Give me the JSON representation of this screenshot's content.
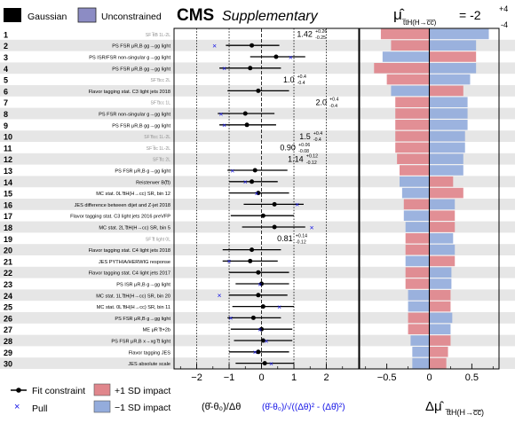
{
  "header": {
    "experiment": "CMS",
    "label": "Supplementary",
    "legend_gaussian": "Gaussian",
    "legend_unconstrained": "Unconstrained",
    "poi_symbol": "μ̂",
    "poi_subscript": "t̅tH(H→c̅c̅)",
    "poi_value": "= -2",
    "poi_sup": "+4",
    "poi_sub": "-4"
  },
  "footer": {
    "legend_fit": "Fit constraint",
    "legend_pull": "Pull",
    "legend_plus": "+1 SD impact",
    "legend_minus": "−1 SD impact",
    "pull_axis_label_1": "(θ̂-θ₀)/Δθ",
    "pull_axis_label_2": "(θ̂-θ₀)/√((Δθ)² - (Δθ̂)²)",
    "impact_axis_label": "Δμ̂",
    "impact_axis_sub": "t̅tH(H→c̅c̅)"
  },
  "colors": {
    "gaussian_fill": "#000000",
    "unconstrained_fill": "#8c8cc4",
    "plus_impact": "#e0868c",
    "minus_impact": "#94acdc",
    "pull_marker": "#1414e6",
    "row_band": "#e6e6e6"
  },
  "chart_data": {
    "type": "impact-plot",
    "pull_axis": {
      "range": [
        -2.7,
        3.0
      ],
      "ticks": [
        -2,
        -1,
        0,
        1,
        2
      ],
      "tick_labels": [
        "−2",
        "−1",
        "0",
        "1",
        "2"
      ]
    },
    "impact_axis": {
      "range": [
        -0.82,
        0.82
      ],
      "ticks": [
        -0.5,
        0,
        0.5
      ],
      "tick_labels": [
        "−0.5",
        "0",
        "0.5"
      ]
    },
    "rows": [
      {
        "rank": "1",
        "name": "SF t̅tB 1L-2L",
        "type": "unconstrained",
        "value": 1.42,
        "label": "1.42",
        "err_up": "+0.26",
        "err_dn": "-0.25",
        "minus": 0.7,
        "plus": -0.57
      },
      {
        "rank": "2",
        "name": "PS FSR μR,B gg→gg light",
        "type": "gaussian",
        "value": -0.3,
        "lo": -1.1,
        "hi": 0.55,
        "pull": -1.45,
        "minus": 0.55,
        "plus": -0.45
      },
      {
        "rank": "3",
        "name": "PS ISR/FSR non-singular g→gg light",
        "type": "gaussian",
        "value": 0.45,
        "lo": -0.35,
        "hi": 1.35,
        "pull": 0.9,
        "minus": -0.55,
        "plus": 0.55
      },
      {
        "rank": "4",
        "name": "PS FSR μR,B gg→gg light",
        "type": "gaussian",
        "value": -0.35,
        "lo": -1.3,
        "hi": 0.6,
        "pull": -1.15,
        "minus": 0.55,
        "plus": -0.65
      },
      {
        "rank": "5",
        "name": "SF t̅tcc 2L",
        "type": "unconstrained",
        "value": 1.0,
        "label": "1.0",
        "err_up": "+0.4",
        "err_dn": "-0.4",
        "minus": 0.48,
        "plus": -0.5
      },
      {
        "rank": "6",
        "name": "Flavor tagging stat. C3 light jets 2018",
        "type": "gaussian",
        "value": -0.1,
        "lo": -1.05,
        "hi": 0.85,
        "minus": -0.45,
        "plus": 0.4
      },
      {
        "rank": "7",
        "name": "SF t̅tcc 1L",
        "type": "unconstrained",
        "value": 2.0,
        "label": "2.0",
        "err_up": "+0.4",
        "err_dn": "-0.4",
        "minus": 0.45,
        "plus": -0.4
      },
      {
        "rank": "8",
        "name": "PS FSR non-singular g→gg light",
        "type": "gaussian",
        "value": -0.5,
        "lo": -1.35,
        "hi": 0.4,
        "pull": -1.25,
        "minus": 0.45,
        "plus": -0.4
      },
      {
        "rank": "9",
        "name": "PS FSR μR,B gg→gg light",
        "type": "gaussian",
        "value": -0.45,
        "lo": -1.3,
        "hi": 0.45,
        "pull": -1.15,
        "minus": 0.45,
        "plus": -0.4
      },
      {
        "rank": "10",
        "name": "SF t̅tcc 1L-2L",
        "type": "unconstrained",
        "value": 1.5,
        "label": "1.5",
        "err_up": "+0.4",
        "err_dn": "-0.4",
        "minus": 0.42,
        "plus": -0.4
      },
      {
        "rank": "11",
        "name": "SF t̅tc 1L-2L",
        "type": "unconstrained",
        "value": 0.9,
        "label": "0.90",
        "err_up": "+0.06",
        "err_dn": "-0.08",
        "minus": 0.42,
        "plus": -0.4
      },
      {
        "rank": "12",
        "name": "SF t̅tc 2L",
        "type": "unconstrained",
        "value": 1.14,
        "label": "1.14",
        "err_up": "+0.12",
        "err_dn": "-0.12",
        "minus": 0.4,
        "plus": -0.38
      },
      {
        "rank": "13",
        "name": "PS FSR μR,B g→gg light",
        "type": "gaussian",
        "value": -0.2,
        "lo": -1.05,
        "hi": 0.8,
        "pull": -0.9,
        "minus": 0.4,
        "plus": -0.35
      },
      {
        "rank": "14",
        "name": "Reisterwer B(t̅t)",
        "type": "gaussian",
        "value": -0.3,
        "lo": -1.0,
        "hi": 0.5,
        "pull": -0.5,
        "minus": -0.35,
        "plus": 0.28
      },
      {
        "rank": "15",
        "name": "MC stat. 0L t̅tH(H→cc) SR, bin 12",
        "type": "gaussian",
        "value": -0.1,
        "lo": -1.0,
        "hi": 0.85,
        "pull": -0.15,
        "minus": -0.32,
        "plus": 0.4
      },
      {
        "rank": "16",
        "name": "JES difference between dijet and Z-jet 2018",
        "type": "gaussian",
        "value": 0.4,
        "lo": -0.55,
        "hi": 1.3,
        "pull": 1.1,
        "minus": 0.3,
        "plus": -0.3
      },
      {
        "rank": "17",
        "name": "Flavor tagging stat. C3 light jets 2016 preVFP",
        "type": "gaussian",
        "value": 0.05,
        "lo": -0.95,
        "hi": 1.0,
        "minus": -0.3,
        "plus": 0.3
      },
      {
        "rank": "18",
        "name": "MC stat. 2L t̅tH(H→cc) SR, bin 5",
        "type": "gaussian",
        "value": 0.4,
        "lo": -0.6,
        "hi": 1.35,
        "pull": 1.55,
        "minus": -0.28,
        "plus": 0.3
      },
      {
        "rank": "19",
        "name": "SF t̅t light 0L",
        "type": "unconstrained",
        "value": 0.81,
        "label": "0.81",
        "err_up": "+0.14",
        "err_dn": "-0.12",
        "minus": 0.28,
        "plus": -0.28
      },
      {
        "rank": "20",
        "name": "Flavor tagging stat. C4 light jets 2018",
        "type": "gaussian",
        "value": -0.3,
        "lo": -1.2,
        "hi": 0.6,
        "minus": 0.3,
        "plus": -0.28
      },
      {
        "rank": "21",
        "name": "JES PYTHIA/HERWIG response",
        "type": "gaussian",
        "value": -0.35,
        "lo": -1.2,
        "hi": 0.5,
        "pull": -1.0,
        "minus": -0.28,
        "plus": 0.3
      },
      {
        "rank": "22",
        "name": "Flavor tagging stat. C4 light jets 2017",
        "type": "gaussian",
        "value": -0.1,
        "lo": -1.0,
        "hi": 0.85,
        "minus": 0.26,
        "plus": -0.28
      },
      {
        "rank": "23",
        "name": "PS ISR μR,B g→gg light",
        "type": "gaussian",
        "value": 0.0,
        "lo": -0.8,
        "hi": 0.85,
        "pull": -0.05,
        "minus": 0.26,
        "plus": -0.28
      },
      {
        "rank": "24",
        "name": "MC stat. 1L t̅tH(H→cc) SR, bin 20",
        "type": "gaussian",
        "value": -0.1,
        "lo": -1.0,
        "hi": 0.8,
        "pull": -1.3,
        "minus": -0.25,
        "plus": 0.25
      },
      {
        "rank": "25",
        "name": "MC stat. 0L t̅tH(H→cc) SR, bin 11",
        "type": "gaussian",
        "value": 0.05,
        "lo": -0.9,
        "hi": 1.0,
        "pull": 0.55,
        "minus": -0.25,
        "plus": 0.25
      },
      {
        "rank": "26",
        "name": "PS FSR μR,B g→gg light",
        "type": "gaussian",
        "value": -0.25,
        "lo": -1.05,
        "hi": 0.6,
        "pull": -0.95,
        "minus": 0.27,
        "plus": -0.25
      },
      {
        "rank": "27",
        "name": "ME μR t̅t+2b",
        "type": "gaussian",
        "value": 0.0,
        "lo": -0.95,
        "hi": 0.95,
        "pull": -0.05,
        "minus": 0.25,
        "plus": -0.25
      },
      {
        "rank": "28",
        "name": "PS FSR μR,B x→xg t̅t light",
        "type": "gaussian",
        "value": 0.05,
        "lo": -0.85,
        "hi": 0.95,
        "pull": 0.15,
        "minus": -0.22,
        "plus": 0.25
      },
      {
        "rank": "29",
        "name": "Flavor tagging JES",
        "type": "gaussian",
        "value": -0.1,
        "lo": -1.0,
        "hi": 0.85,
        "pull": -0.2,
        "minus": -0.2,
        "plus": 0.22
      },
      {
        "rank": "30",
        "name": "JES absolute scale",
        "type": "gaussian",
        "value": 0.1,
        "lo": -0.8,
        "hi": 1.0,
        "pull": 0.3,
        "minus": -0.2,
        "plus": 0.2
      }
    ]
  }
}
